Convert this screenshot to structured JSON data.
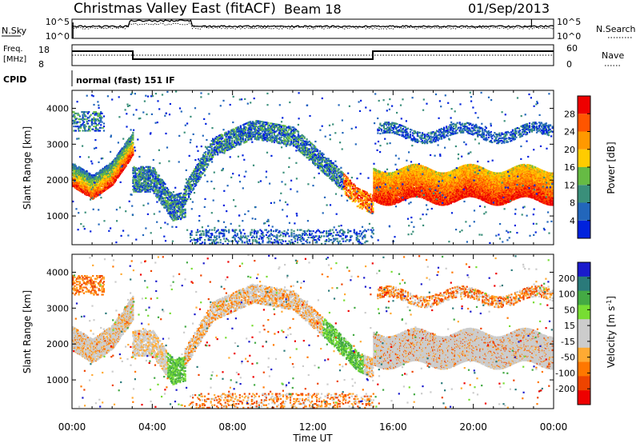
{
  "header": {
    "title": "Christmas Valley East (fitACF)",
    "beam": "Beam 18",
    "date": "01/Sep/2013"
  },
  "top_panels": {
    "nsky_label": "N.Sky",
    "nsky_ticks": [
      "10^5",
      "10^0"
    ],
    "nsearch_label": "N.Search",
    "nsearch_ticks": [
      "10^5",
      "10^0"
    ],
    "freq_label_line1": "Freq.",
    "freq_label_line2": "[MHz]",
    "freq_ticks": [
      "18",
      "8"
    ],
    "nave_label": "Nave",
    "nave_ticks": [
      "60",
      "0"
    ],
    "cpid_label": "CPID",
    "cpid_text": "normal (fast) 151 IF"
  },
  "colors": {
    "power_scale": [
      "#0022dd",
      "#2266bb",
      "#3a8f7a",
      "#66bb44",
      "#ffcc00",
      "#ff9900",
      "#ff5500",
      "#ee0000"
    ],
    "velocity_scale": [
      "#1a1acc",
      "#2a7a7a",
      "#44aa44",
      "#77dd33",
      "#cccccc",
      "#cccccc",
      "#ffaa33",
      "#ff7700",
      "#ee4400",
      "#ee0000"
    ]
  },
  "chart_data": [
    {
      "type": "heatmap",
      "panel": "power",
      "xlabel": "Time UT",
      "ylabel": "Slant Range [km]",
      "x_ticks": [
        "00:00",
        "04:00",
        "08:00",
        "12:00",
        "16:00",
        "20:00",
        "00:00"
      ],
      "y_ticks": [
        1000,
        2000,
        3000,
        4000
      ],
      "ylim": [
        200,
        4500
      ],
      "xlim_hours": [
        0,
        24
      ],
      "colorbar_label": "Power [dB]",
      "colorbar_ticks": [
        4,
        8,
        12,
        16,
        20,
        24,
        28
      ],
      "colorbar_range": [
        0,
        32
      ]
    },
    {
      "type": "heatmap",
      "panel": "velocity",
      "xlabel": "Time UT",
      "ylabel": "Slant Range [km]",
      "x_ticks": [
        "00:00",
        "04:00",
        "08:00",
        "12:00",
        "16:00",
        "20:00",
        "00:00"
      ],
      "y_ticks": [
        1000,
        2000,
        3000,
        4000
      ],
      "ylim": [
        200,
        4500
      ],
      "xlim_hours": [
        0,
        24
      ],
      "colorbar_label": "Velocity [m s",
      "colorbar_exp": "-1",
      "colorbar_label_end": "]",
      "colorbar_ticks": [
        "200",
        "100",
        "50",
        "15",
        "-15",
        "-50",
        "-100",
        "-200"
      ]
    }
  ]
}
